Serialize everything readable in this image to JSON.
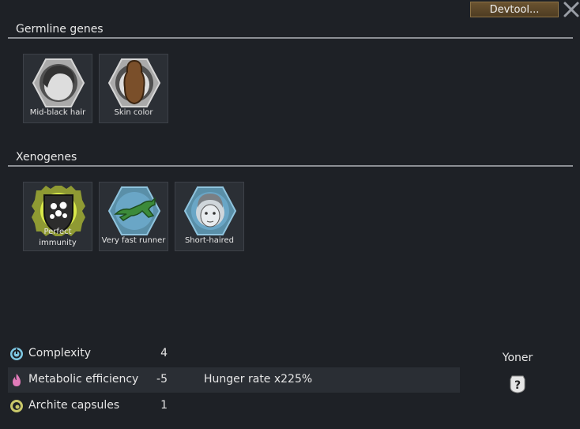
{
  "toolbar": {
    "devtool_label": "Devtool...",
    "close_icon": "close-x-icon"
  },
  "germline": {
    "title": "Germline genes",
    "genes": [
      {
        "label": "Mid-black hair",
        "icon": "hair-icon"
      },
      {
        "label": "Skin color",
        "icon": "skin-color-icon"
      }
    ]
  },
  "xenogenes": {
    "title": "Xenogenes",
    "genes": [
      {
        "label": "Perfect immunity",
        "icon": "immunity-shield-icon"
      },
      {
        "label": "Very fast runner",
        "icon": "runner-icon"
      },
      {
        "label": "Short-haired",
        "icon": "short-fur-icon"
      }
    ]
  },
  "stats": [
    {
      "name": "Complexity",
      "value": "4",
      "note": "",
      "icon": "complexity-icon",
      "color": "#7ec8e3"
    },
    {
      "name": "Metabolic efficiency",
      "value": "-5",
      "note": "Hunger rate x225%",
      "icon": "metabolism-icon",
      "color": "#e07ab8"
    },
    {
      "name": "Archite capsules",
      "value": "1",
      "note": "",
      "icon": "archite-icon",
      "color": "#c9c86a"
    }
  ],
  "xenotype": {
    "name": "Yoner",
    "icon": "unknown-xenotype-icon"
  }
}
